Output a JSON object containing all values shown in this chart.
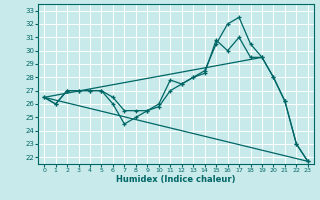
{
  "xlabel": "Humidex (Indice chaleur)",
  "bg_color": "#c8eaea",
  "grid_color": "#ffffff",
  "line_color": "#006666",
  "xlim": [
    -0.5,
    23.5
  ],
  "ylim": [
    21.5,
    33.5
  ],
  "xticks": [
    0,
    1,
    2,
    3,
    4,
    5,
    6,
    7,
    8,
    9,
    10,
    11,
    12,
    13,
    14,
    15,
    16,
    17,
    18,
    19,
    20,
    21,
    22,
    23
  ],
  "yticks": [
    22,
    23,
    24,
    25,
    26,
    27,
    28,
    29,
    30,
    31,
    32,
    33
  ],
  "lines": [
    {
      "x": [
        0,
        1,
        2,
        3,
        4,
        5,
        6,
        7,
        8,
        9,
        10,
        11,
        12,
        13,
        14,
        15,
        16,
        17,
        18,
        19,
        20,
        21,
        22,
        23
      ],
      "y": [
        26.5,
        26.0,
        27.0,
        27.0,
        27.0,
        27.0,
        26.5,
        25.5,
        25.5,
        25.5,
        26.0,
        27.8,
        27.5,
        28.0,
        28.5,
        30.5,
        32.0,
        32.5,
        30.5,
        29.5,
        28.0,
        26.2,
        23.0,
        21.7
      ],
      "markers": true
    },
    {
      "x": [
        0,
        1,
        2,
        3,
        4,
        5,
        6,
        7,
        8,
        9,
        10,
        11,
        12,
        13,
        14,
        15,
        16,
        17,
        18,
        19,
        20,
        21,
        22,
        23
      ],
      "y": [
        26.5,
        26.0,
        27.0,
        27.0,
        27.0,
        27.0,
        26.0,
        24.5,
        25.0,
        25.5,
        25.8,
        27.0,
        27.5,
        28.0,
        28.3,
        30.8,
        30.0,
        31.0,
        29.5,
        29.5,
        28.0,
        26.2,
        23.0,
        21.7
      ],
      "markers": true
    },
    {
      "x": [
        0,
        23
      ],
      "y": [
        26.5,
        21.7
      ],
      "markers": false
    },
    {
      "x": [
        0,
        19
      ],
      "y": [
        26.5,
        29.5
      ],
      "markers": false
    }
  ]
}
